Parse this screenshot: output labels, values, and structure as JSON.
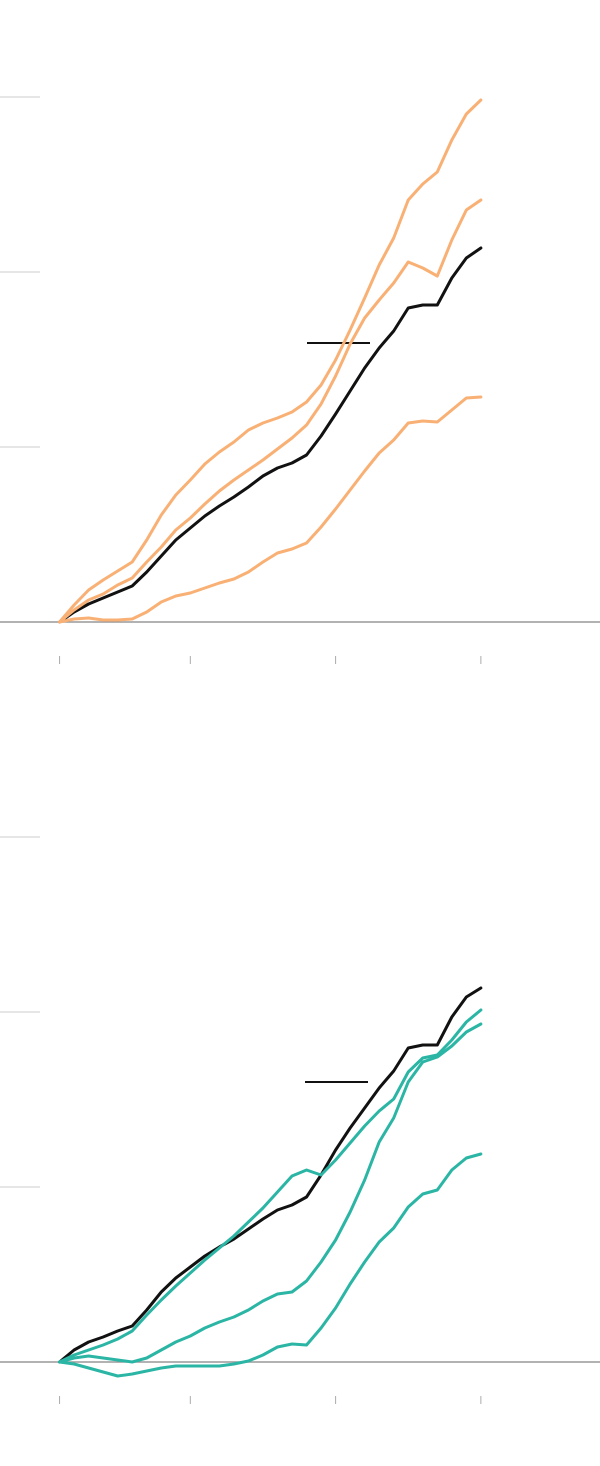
{
  "chart_data": [
    {
      "type": "line",
      "x": [
        0,
        1,
        2,
        3,
        4,
        5,
        6,
        7,
        8,
        9,
        10,
        11,
        12,
        13,
        14,
        15,
        16,
        17,
        18,
        19,
        20,
        21,
        22,
        23,
        24,
        25,
        26,
        27,
        28,
        29
      ],
      "xlim": [
        -4.1,
        37.2
      ],
      "xticks": [
        0,
        9,
        19,
        29
      ],
      "ylim": [
        0,
        105
      ],
      "yticks": [
        0,
        35,
        70,
        105
      ],
      "grid": true,
      "series": [
        {
          "color": "#111111",
          "values": [
            0,
            2,
            3.6,
            4.8,
            6,
            7.2,
            10,
            13.2,
            16.4,
            18.8,
            21.2,
            23.2,
            25,
            27,
            29.2,
            30.8,
            31.8,
            33.4,
            37.2,
            41.6,
            46.2,
            50.8,
            54.8,
            58.2,
            62.8,
            63.4,
            63.4,
            68.8,
            72.8,
            74.8
          ]
        },
        {
          "color": "#f9b074",
          "values": [
            0,
            3.4,
            6.4,
            8.4,
            10.2,
            12,
            16.4,
            21.4,
            25.4,
            28.4,
            31.6,
            34,
            36,
            38.4,
            39.8,
            40.8,
            42,
            44,
            47.4,
            52.4,
            58.4,
            64.8,
            71.4,
            76.8,
            84.4,
            87.6,
            90,
            96.4,
            101.6,
            104.4
          ]
        },
        {
          "color": "#f9b074",
          "values": [
            0,
            2.4,
            4.4,
            5.6,
            7.4,
            8.8,
            12,
            15,
            18.4,
            20.8,
            23.6,
            26.2,
            28.4,
            30.4,
            32.4,
            34.6,
            36.8,
            39.4,
            43.6,
            49.2,
            55.6,
            60.8,
            64.4,
            67.8,
            72,
            70.8,
            69.2,
            76.4,
            82.4,
            84.4
          ]
        },
        {
          "color": "#f9b074",
          "values": [
            0,
            0.6,
            0.8,
            0.4,
            0.4,
            0.6,
            2,
            4,
            5.2,
            5.8,
            6.8,
            7.8,
            8.6,
            10,
            12,
            13.8,
            14.6,
            15.8,
            19,
            22.6,
            26.4,
            30.2,
            33.8,
            36.4,
            39.8,
            40.2,
            40,
            42.4,
            44.8,
            45
          ]
        }
      ]
    },
    {
      "type": "line",
      "x": [
        0,
        1,
        2,
        3,
        4,
        5,
        6,
        7,
        8,
        9,
        10,
        11,
        12,
        13,
        14,
        15,
        16,
        17,
        18,
        19,
        20,
        21,
        22,
        23,
        24,
        25,
        26,
        27,
        28,
        29
      ],
      "xlim": [
        -4.1,
        37.2
      ],
      "xticks": [
        0,
        9,
        19,
        29
      ],
      "ylim": [
        -5,
        105
      ],
      "yticks": [
        0,
        35,
        70,
        105
      ],
      "grid": true,
      "series": [
        {
          "color": "#111111",
          "values": [
            0,
            2.4,
            4,
            5,
            6.2,
            7.2,
            10.4,
            14,
            16.8,
            19,
            21.2,
            23,
            24.6,
            26.6,
            28.6,
            30.4,
            31.4,
            33,
            37.4,
            42.4,
            46.8,
            50.8,
            54.8,
            58.2,
            62.8,
            63.4,
            63.4,
            69,
            73,
            74.8
          ]
        },
        {
          "color": "#2bb5a5",
          "values": [
            0,
            1.4,
            2.4,
            3.4,
            4.6,
            6.2,
            9.4,
            12.4,
            15.2,
            17.8,
            20.4,
            22.8,
            25.2,
            28,
            30.8,
            34,
            37.2,
            38.4,
            37.4,
            40.4,
            43.8,
            47.2,
            50.2,
            52.6,
            58,
            60.8,
            61.4,
            64.4,
            68,
            70.4
          ]
        },
        {
          "color": "#2bb5a5",
          "values": [
            0,
            0.8,
            1.2,
            0.8,
            0.4,
            0,
            0.8,
            2.4,
            4,
            5.2,
            6.8,
            8,
            9,
            10.4,
            12.2,
            13.6,
            14,
            16.2,
            20,
            24.4,
            30,
            36.4,
            44,
            48.8,
            56,
            60,
            61,
            63.2,
            66,
            67.6
          ]
        },
        {
          "color": "#2bb5a5",
          "values": [
            0,
            -0.4,
            -1.2,
            -2,
            -2.8,
            -2.4,
            -1.8,
            -1.2,
            -0.8,
            -0.8,
            -0.8,
            -0.8,
            -0.4,
            0.2,
            1.4,
            3,
            3.6,
            3.4,
            6.8,
            10.8,
            15.6,
            20,
            24,
            26.8,
            31,
            33.6,
            34.4,
            38.4,
            40.8,
            41.6
          ]
        }
      ]
    }
  ]
}
